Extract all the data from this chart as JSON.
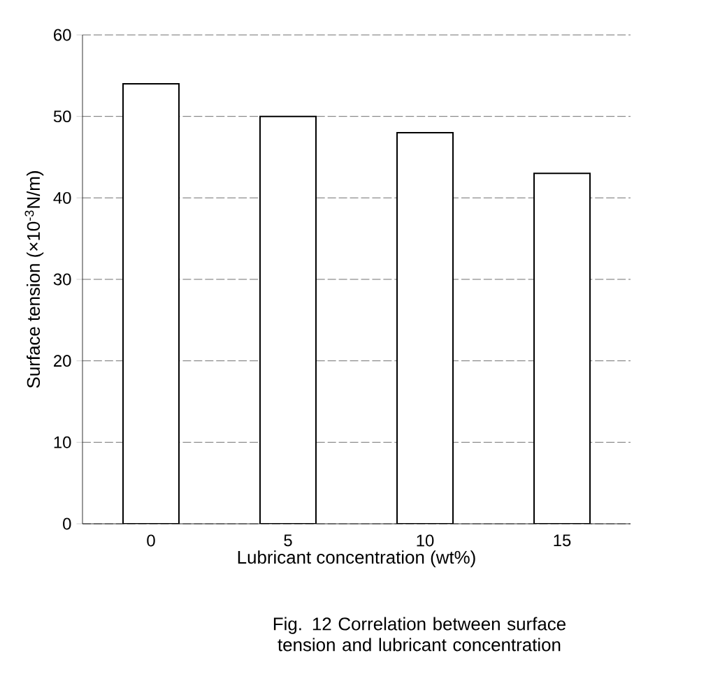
{
  "chart_data": {
    "type": "bar",
    "categories": [
      "0",
      "5",
      "10",
      "15"
    ],
    "values": [
      54,
      50,
      48,
      43
    ],
    "color": "#ffffff",
    "ylim": [
      0,
      60
    ],
    "yticks": [
      0,
      10,
      20,
      30,
      40,
      50,
      60
    ],
    "grid": "y",
    "xlabel": "Lubricant concentration (wt%)",
    "ylabel": "Surface tension (×10$^{-3}$N/m)",
    "annotations": [
      "Fig. 12  Correlation between surface tension and lubricant concentration"
    ]
  }
}
